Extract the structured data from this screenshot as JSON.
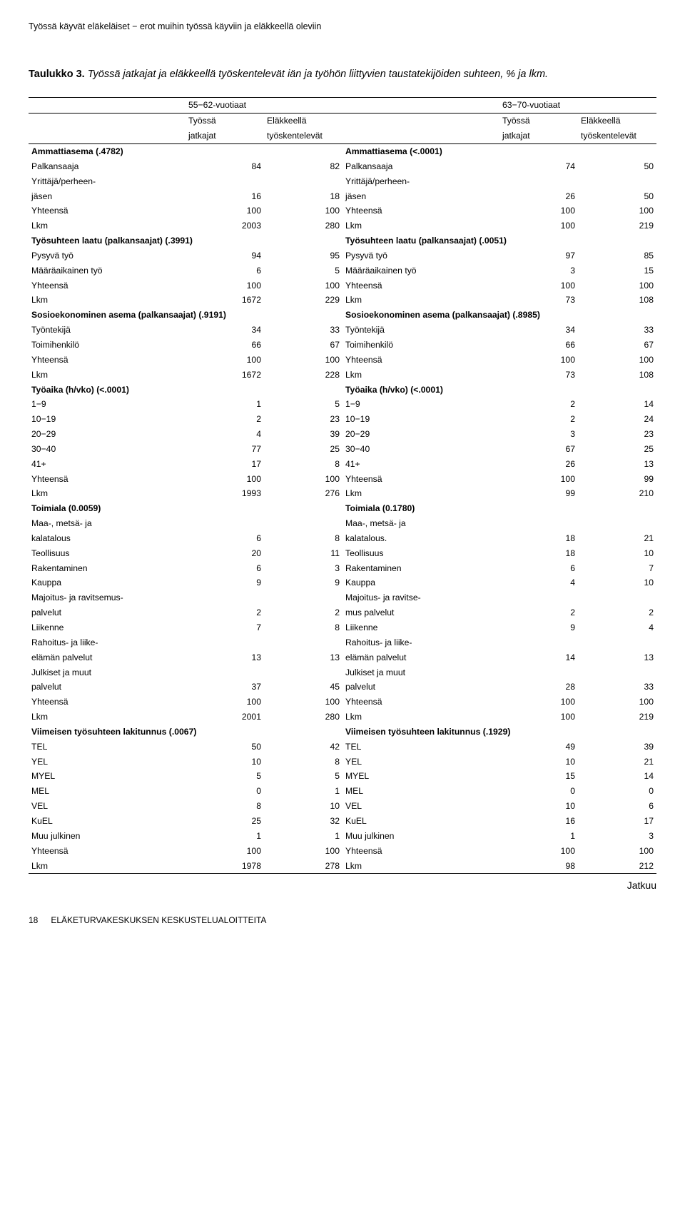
{
  "runningHeader": "Työssä käyvät eläkeläiset − erot muihin työssä käyviin ja eläkkeellä oleviin",
  "tableTitleBold": "Taulukko 3.",
  "tableTitleItalic": "Työssä jatkajat ja eläkkeellä työskentelevät iän ja työhön liittyvien taustatekijöiden suhteen, % ja lkm.",
  "ageGroups": {
    "left": "55−62-vuotiaat",
    "right": "63−70-vuotiaat"
  },
  "colHeaders": {
    "l1": "Työssä",
    "l1b": "jatkajat",
    "l2": "Eläkkeellä",
    "l2b": "työskentelevät",
    "r1": "Työssä",
    "r1b": "jatkajat",
    "r2": "Eläkkeellä",
    "r2b": "työskentelevät"
  },
  "rows": [
    {
      "type": "sec",
      "lLabel": "Ammattiasema (.4782)",
      "rLabel": "Ammattiasema (<.0001)"
    },
    {
      "type": "d",
      "lLabel": "Palkansaaja",
      "l1": "84",
      "l2": "82",
      "rLabel": "Palkansaaja",
      "r1": "74",
      "r2": "50"
    },
    {
      "type": "d",
      "lLabel": "Yrittäjä/perheen-",
      "l1": "",
      "l2": "",
      "rLabel": "Yrittäjä/perheen-",
      "r1": "",
      "r2": ""
    },
    {
      "type": "d",
      "lLabel": "jäsen",
      "l1": "16",
      "l2": "18",
      "rLabel": "jäsen",
      "r1": "26",
      "r2": "50"
    },
    {
      "type": "d",
      "lLabel": "Yhteensä",
      "l1": "100",
      "l2": "100",
      "rLabel": "Yhteensä",
      "r1": "100",
      "r2": "100"
    },
    {
      "type": "d",
      "lLabel": "Lkm",
      "l1": "2003",
      "l2": "280",
      "rLabel": "Lkm",
      "r1": "100",
      "r2": "219"
    },
    {
      "type": "sec",
      "lLabel": "Työsuhteen laatu (palkansaajat) (.3991)",
      "rLabel": "Työsuhteen laatu (palkansaajat) (.0051)"
    },
    {
      "type": "d",
      "lLabel": "Pysyvä työ",
      "l1": "94",
      "l2": "95",
      "rLabel": "Pysyvä työ",
      "r1": "97",
      "r2": "85"
    },
    {
      "type": "d",
      "lLabel": "Määräaikainen työ",
      "l1": "6",
      "l2": "5",
      "rLabel": "Määräaikainen työ",
      "r1": "3",
      "r2": "15"
    },
    {
      "type": "d",
      "lLabel": "Yhteensä",
      "l1": "100",
      "l2": "100",
      "rLabel": "Yhteensä",
      "r1": "100",
      "r2": "100"
    },
    {
      "type": "d",
      "lLabel": "Lkm",
      "l1": "1672",
      "l2": "229",
      "rLabel": "Lkm",
      "r1": "73",
      "r2": "108"
    },
    {
      "type": "sec",
      "lLabel": "Sosioekonominen asema (palkansaajat) (.9191)",
      "rLabel": "Sosioekonominen asema (palkansaajat) (.8985)"
    },
    {
      "type": "d",
      "lLabel": "Työntekijä",
      "l1": "34",
      "l2": "33",
      "rLabel": "Työntekijä",
      "r1": "34",
      "r2": "33"
    },
    {
      "type": "d",
      "lLabel": "Toimihenkilö",
      "l1": "66",
      "l2": "67",
      "rLabel": "Toimihenkilö",
      "r1": "66",
      "r2": "67"
    },
    {
      "type": "d",
      "lLabel": "Yhteensä",
      "l1": "100",
      "l2": "100",
      "rLabel": "Yhteensä",
      "r1": "100",
      "r2": "100"
    },
    {
      "type": "d",
      "lLabel": "Lkm",
      "l1": "1672",
      "l2": "228",
      "rLabel": "Lkm",
      "r1": "73",
      "r2": "108"
    },
    {
      "type": "sec",
      "lLabel": "Työaika (h/vko) (<.0001)",
      "rLabel": "Työaika (h/vko) (<.0001)"
    },
    {
      "type": "d",
      "lLabel": "1−9",
      "l1": "1",
      "l2": "5",
      "rLabel": "1−9",
      "r1": "2",
      "r2": "14"
    },
    {
      "type": "d",
      "lLabel": "10−19",
      "l1": "2",
      "l2": "23",
      "rLabel": "10−19",
      "r1": "2",
      "r2": "24"
    },
    {
      "type": "d",
      "lLabel": "20−29",
      "l1": "4",
      "l2": "39",
      "rLabel": "20−29",
      "r1": "3",
      "r2": "23"
    },
    {
      "type": "d",
      "lLabel": "30−40",
      "l1": "77",
      "l2": "25",
      "rLabel": "30−40",
      "r1": "67",
      "r2": "25"
    },
    {
      "type": "d",
      "lLabel": "41+",
      "l1": "17",
      "l2": "8",
      "rLabel": "41+",
      "r1": "26",
      "r2": "13"
    },
    {
      "type": "d",
      "lLabel": "Yhteensä",
      "l1": "100",
      "l2": "100",
      "rLabel": "Yhteensä",
      "r1": "100",
      "r2": "99"
    },
    {
      "type": "d",
      "lLabel": "Lkm",
      "l1": "1993",
      "l2": "276",
      "rLabel": "Lkm",
      "r1": "99",
      "r2": "210"
    },
    {
      "type": "sec",
      "lLabel": "Toimiala (0.0059)",
      "rLabel": "Toimiala (0.1780)"
    },
    {
      "type": "d",
      "lLabel": "Maa-, metsä- ja",
      "l1": "",
      "l2": "",
      "rLabel": "Maa-, metsä- ja",
      "r1": "",
      "r2": ""
    },
    {
      "type": "d",
      "lLabel": "kalatalous",
      "l1": "6",
      "l2": "8",
      "rLabel": "kalatalous.",
      "r1": "18",
      "r2": "21"
    },
    {
      "type": "d",
      "lLabel": "Teollisuus",
      "l1": "20",
      "l2": "11",
      "rLabel": "Teollisuus",
      "r1": "18",
      "r2": "10"
    },
    {
      "type": "d",
      "lLabel": "Rakentaminen",
      "l1": "6",
      "l2": "3",
      "rLabel": "Rakentaminen",
      "r1": "6",
      "r2": "7"
    },
    {
      "type": "d",
      "lLabel": "Kauppa",
      "l1": "9",
      "l2": "9",
      "rLabel": "Kauppa",
      "r1": "4",
      "r2": "10"
    },
    {
      "type": "d",
      "lLabel": "Majoitus- ja ravitsemus-",
      "l1": "",
      "l2": "",
      "rLabel": "Majoitus- ja ravitse-",
      "r1": "",
      "r2": ""
    },
    {
      "type": "d",
      "lLabel": "palvelut",
      "l1": "2",
      "l2": "2",
      "rLabel": "mus palvelut",
      "r1": "2",
      "r2": "2"
    },
    {
      "type": "d",
      "lLabel": "Liikenne",
      "l1": "7",
      "l2": "8",
      "rLabel": "Liikenne",
      "r1": "9",
      "r2": "4"
    },
    {
      "type": "d",
      "lLabel": "Rahoitus- ja liike-",
      "l1": "",
      "l2": "",
      "rLabel": "Rahoitus- ja liike-",
      "r1": "",
      "r2": ""
    },
    {
      "type": "d",
      "lLabel": "elämän palvelut",
      "l1": "13",
      "l2": "13",
      "rLabel": "elämän palvelut",
      "r1": "14",
      "r2": "13"
    },
    {
      "type": "d",
      "lLabel": "Julkiset ja muut",
      "l1": "",
      "l2": "",
      "rLabel": "Julkiset ja muut",
      "r1": "",
      "r2": ""
    },
    {
      "type": "d",
      "lLabel": "palvelut",
      "l1": "37",
      "l2": "45",
      "rLabel": "palvelut",
      "r1": "28",
      "r2": "33"
    },
    {
      "type": "d",
      "lLabel": "Yhteensä",
      "l1": "100",
      "l2": "100",
      "rLabel": "Yhteensä",
      "r1": "100",
      "r2": "100"
    },
    {
      "type": "d",
      "lLabel": "Lkm",
      "l1": "2001",
      "l2": "280",
      "rLabel": "Lkm",
      "r1": "100",
      "r2": "219"
    },
    {
      "type": "sec",
      "lLabel": "Viimeisen työsuhteen lakitunnus (.0067)",
      "rLabel": "Viimeisen työsuhteen lakitunnus (.1929)"
    },
    {
      "type": "d",
      "lLabel": "TEL",
      "l1": "50",
      "l2": "42",
      "rLabel": "TEL",
      "r1": "49",
      "r2": "39"
    },
    {
      "type": "d",
      "lLabel": "YEL",
      "l1": "10",
      "l2": "8",
      "rLabel": "YEL",
      "r1": "10",
      "r2": "21"
    },
    {
      "type": "d",
      "lLabel": "MYEL",
      "l1": "5",
      "l2": "5",
      "rLabel": "MYEL",
      "r1": "15",
      "r2": "14"
    },
    {
      "type": "d",
      "lLabel": "MEL",
      "l1": "0",
      "l2": "1",
      "rLabel": "MEL",
      "r1": "0",
      "r2": "0"
    },
    {
      "type": "d",
      "lLabel": "VEL",
      "l1": "8",
      "l2": "10",
      "rLabel": "VEL",
      "r1": "10",
      "r2": "6"
    },
    {
      "type": "d",
      "lLabel": "KuEL",
      "l1": "25",
      "l2": "32",
      "rLabel": "KuEL",
      "r1": "16",
      "r2": "17"
    },
    {
      "type": "d",
      "lLabel": "Muu julkinen",
      "l1": "1",
      "l2": "1",
      "rLabel": "Muu julkinen",
      "r1": "1",
      "r2": "3"
    },
    {
      "type": "d",
      "lLabel": "Yhteensä",
      "l1": "100",
      "l2": "100",
      "rLabel": "Yhteensä",
      "r1": "100",
      "r2": "100"
    },
    {
      "type": "d",
      "lLabel": "Lkm",
      "l1": "1978",
      "l2": "278",
      "rLabel": "Lkm",
      "r1": "98",
      "r2": "212"
    }
  ],
  "jatkuu": "Jatkuu",
  "footer": {
    "page": "18",
    "text": "ELÄKETURVAKESKUKSEN KESKUSTELUALOITTEITA"
  }
}
